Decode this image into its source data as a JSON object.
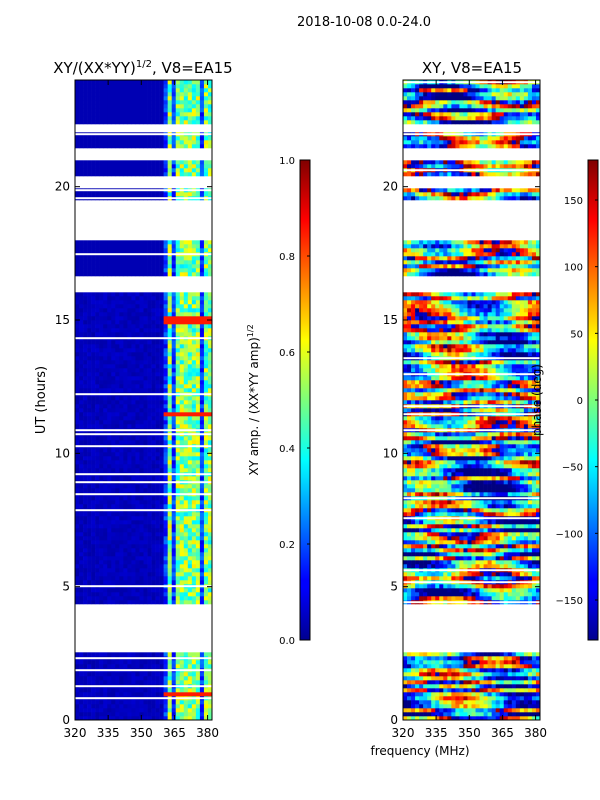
{
  "suptitle": "2018-10-08 0.0-24.0",
  "colors": {
    "amp_low": "#00008f",
    "amp_mid": "#46ffb9",
    "amp_high": "#800000",
    "phase_low": "#00008f",
    "phase_mid": "#7dff7a",
    "phase_high": "#800000",
    "blank": "#ffffff"
  },
  "chart_data": [
    {
      "type": "heatmap",
      "title_main": "XY/(XX*YY)",
      "title_sup": "1/2",
      "title_tail": ", V8=EA15",
      "xlabel": "",
      "ylabel": "UT (hours)",
      "xlim": [
        320,
        382
      ],
      "ylim": [
        0,
        24
      ],
      "xticks": [
        320,
        335,
        350,
        365,
        380
      ],
      "yticks": [
        0,
        5,
        10,
        15,
        20
      ],
      "bright_channels_mhz": [
        363,
        366,
        369,
        373,
        376,
        380
      ],
      "bright_hour_bands": [
        [
          0.9,
          1.0
        ],
        [
          11.4,
          11.6
        ],
        [
          14.9,
          15.1
        ]
      ],
      "data_gaps_hours": [
        [
          2.6,
          4.4
        ],
        [
          16.0,
          16.6
        ],
        [
          18.0,
          19.5
        ],
        [
          19.9,
          20.4
        ],
        [
          21.0,
          21.4
        ],
        [
          22.1,
          22.4
        ]
      ],
      "colorbar": {
        "label_main": "XY amp. / (XX*YY amp)",
        "label_sup": "1/2",
        "range": [
          0.0,
          1.0
        ],
        "ticks": [
          "0.0",
          "0.2",
          "0.4",
          "0.6",
          "0.8",
          "1.0"
        ]
      }
    },
    {
      "type": "heatmap",
      "title_main": "XY, V8=EA15",
      "xlabel": "frequency (MHz)",
      "ylabel": "",
      "xlim": [
        320,
        382
      ],
      "ylim": [
        0,
        24
      ],
      "xticks": [
        320,
        335,
        350,
        365,
        380
      ],
      "yticks": [
        0,
        5,
        10,
        15,
        20
      ],
      "data_gaps_hours": [
        [
          2.6,
          4.4
        ],
        [
          16.0,
          16.6
        ],
        [
          18.0,
          19.5
        ],
        [
          19.9,
          20.4
        ],
        [
          21.0,
          21.4
        ],
        [
          22.1,
          22.4
        ]
      ],
      "colorbar": {
        "label_main": "phase (deg)",
        "range": [
          -180,
          180
        ],
        "ticks": [
          "−150",
          "−100",
          "−50",
          "0",
          "50",
          "100",
          "150"
        ],
        "tick_values": [
          -150,
          -100,
          -50,
          0,
          50,
          100,
          150
        ]
      }
    }
  ]
}
